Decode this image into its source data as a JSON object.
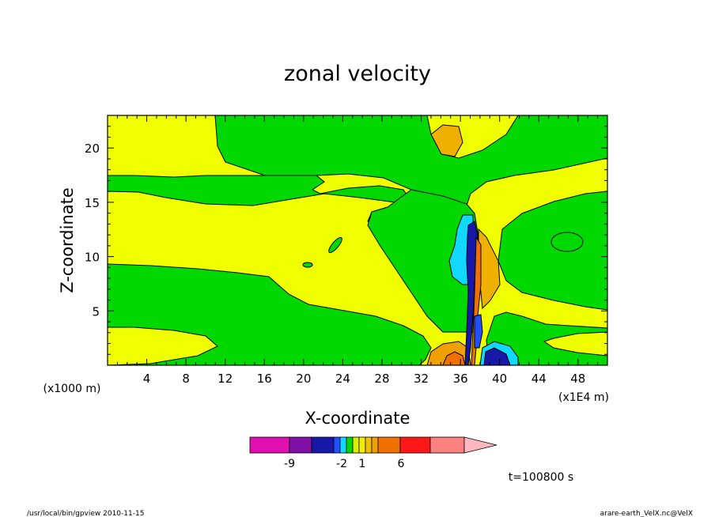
{
  "chart_data": {
    "type": "contour",
    "title": "zonal velocity",
    "xlabel": "X-coordinate",
    "ylabel": "Z-coordinate",
    "xlim": [
      0,
      51
    ],
    "ylim": [
      0,
      23
    ],
    "x_ticks": [
      4,
      8,
      12,
      16,
      20,
      24,
      28,
      32,
      36,
      40,
      44,
      48
    ],
    "y_ticks": [
      5,
      10,
      15,
      20
    ],
    "x_unit": "(x1E4 m)",
    "y_unit": "(x1000 m)",
    "colorbar": {
      "colors": [
        "#e010b0",
        "#8010a8",
        "#1818a8",
        "#2050ff",
        "#10d8ff",
        "#00d800",
        "#d8f000",
        "#f0f000",
        "#f0c000",
        "#f0a000",
        "#f07000",
        "#ff1818",
        "#ff8080",
        "#ffb8c0"
      ],
      "tick_labels": [
        "-9",
        "-2",
        "1",
        "6"
      ],
      "tick_positions": [
        -9,
        -2,
        1,
        6
      ]
    },
    "time_label": "t=100800 s"
  },
  "footer": {
    "left": "/usr/local/bin/gpview   2010-11-15",
    "right": "arare-earth_VelX.nc@VelX"
  }
}
